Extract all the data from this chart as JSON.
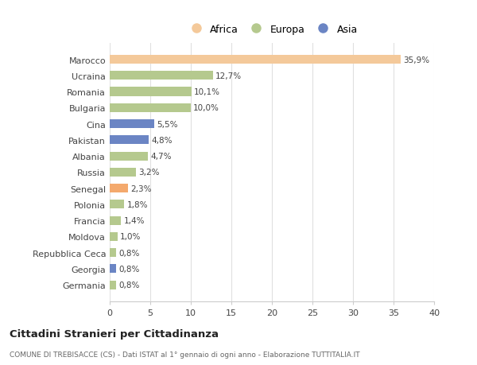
{
  "categories": [
    "Germania",
    "Georgia",
    "Repubblica Ceca",
    "Moldova",
    "Francia",
    "Polonia",
    "Senegal",
    "Russia",
    "Albania",
    "Pakistan",
    "Cina",
    "Bulgaria",
    "Romania",
    "Ucraina",
    "Marocco"
  ],
  "values": [
    0.8,
    0.8,
    0.8,
    1.0,
    1.4,
    1.8,
    2.3,
    3.2,
    4.7,
    4.8,
    5.5,
    10.0,
    10.1,
    12.7,
    35.9
  ],
  "labels": [
    "0,8%",
    "0,8%",
    "0,8%",
    "1,0%",
    "1,4%",
    "1,8%",
    "2,3%",
    "3,2%",
    "4,7%",
    "4,8%",
    "5,5%",
    "10,0%",
    "10,1%",
    "12,7%",
    "35,9%"
  ],
  "colors": [
    "#b5c98e",
    "#6b85c4",
    "#b5c98e",
    "#b5c98e",
    "#b5c98e",
    "#b5c98e",
    "#f4a96d",
    "#b5c98e",
    "#b5c98e",
    "#6b85c4",
    "#6b85c4",
    "#b5c98e",
    "#b5c98e",
    "#b5c98e",
    "#f4c99a"
  ],
  "legend_labels": [
    "Africa",
    "Europa",
    "Asia"
  ],
  "legend_colors": [
    "#f4c99a",
    "#b5c98e",
    "#6b85c4"
  ],
  "title": "Cittadini Stranieri per Cittadinanza",
  "subtitle": "COMUNE DI TREBISACCE (CS) - Dati ISTAT al 1° gennaio di ogni anno - Elaborazione TUTTITALIA.IT",
  "xlim": [
    0,
    40
  ],
  "xticks": [
    0,
    5,
    10,
    15,
    20,
    25,
    30,
    35,
    40
  ],
  "bg_color": "#ffffff",
  "grid_color": "#e0e0e0",
  "bar_height": 0.55
}
